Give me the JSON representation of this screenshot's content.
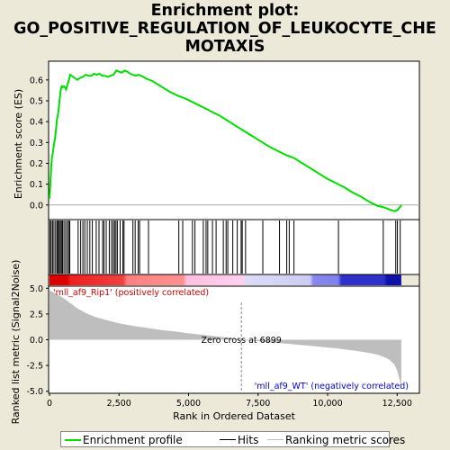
{
  "title_lines": [
    "Enrichment plot:",
    "GO_POSITIVE_REGULATION_OF_LEUKOCYTE_CHE",
    "MOTAXIS"
  ],
  "chart_data": {
    "type": "line",
    "top_panel": {
      "ylabel": "Enrichment score (ES)",
      "ylim": [
        -0.07,
        0.69
      ],
      "yticks": [
        0.0,
        0.1,
        0.2,
        0.3,
        0.4,
        0.5,
        0.6
      ],
      "es_curve": [
        [
          0,
          0.03
        ],
        [
          30,
          0.1
        ],
        [
          60,
          0.18
        ],
        [
          90,
          0.23
        ],
        [
          120,
          0.25
        ],
        [
          160,
          0.29
        ],
        [
          200,
          0.32
        ],
        [
          240,
          0.37
        ],
        [
          270,
          0.41
        ],
        [
          300,
          0.43
        ],
        [
          330,
          0.46
        ],
        [
          360,
          0.5
        ],
        [
          400,
          0.55
        ],
        [
          440,
          0.57
        ],
        [
          480,
          0.565
        ],
        [
          520,
          0.57
        ],
        [
          560,
          0.565
        ],
        [
          600,
          0.555
        ],
        [
          650,
          0.58
        ],
        [
          700,
          0.6
        ],
        [
          740,
          0.625
        ],
        [
          800,
          0.62
        ],
        [
          900,
          0.61
        ],
        [
          1000,
          0.6
        ],
        [
          1100,
          0.61
        ],
        [
          1200,
          0.615
        ],
        [
          1300,
          0.625
        ],
        [
          1400,
          0.62
        ],
        [
          1500,
          0.62
        ],
        [
          1600,
          0.63
        ],
        [
          1700,
          0.625
        ],
        [
          1800,
          0.63
        ],
        [
          1900,
          0.62
        ],
        [
          2000,
          0.62
        ],
        [
          2100,
          0.615
        ],
        [
          2200,
          0.62
        ],
        [
          2300,
          0.625
        ],
        [
          2400,
          0.645
        ],
        [
          2500,
          0.64
        ],
        [
          2600,
          0.635
        ],
        [
          2700,
          0.645
        ],
        [
          2800,
          0.64
        ],
        [
          2900,
          0.63
        ],
        [
          3000,
          0.625
        ],
        [
          3100,
          0.62
        ],
        [
          3200,
          0.625
        ],
        [
          3300,
          0.62
        ],
        [
          3500,
          0.605
        ],
        [
          3700,
          0.595
        ],
        [
          4000,
          0.57
        ],
        [
          4300,
          0.545
        ],
        [
          4600,
          0.525
        ],
        [
          4900,
          0.51
        ],
        [
          5200,
          0.49
        ],
        [
          5500,
          0.47
        ],
        [
          5800,
          0.45
        ],
        [
          6100,
          0.43
        ],
        [
          6400,
          0.405
        ],
        [
          6700,
          0.38
        ],
        [
          7000,
          0.355
        ],
        [
          7300,
          0.33
        ],
        [
          7600,
          0.305
        ],
        [
          7900,
          0.28
        ],
        [
          8200,
          0.26
        ],
        [
          8500,
          0.24
        ],
        [
          8800,
          0.225
        ],
        [
          9100,
          0.2
        ],
        [
          9400,
          0.175
        ],
        [
          9700,
          0.15
        ],
        [
          10000,
          0.125
        ],
        [
          10300,
          0.105
        ],
        [
          10600,
          0.085
        ],
        [
          10900,
          0.06
        ],
        [
          11200,
          0.04
        ],
        [
          11500,
          0.015
        ],
        [
          11800,
          -0.005
        ],
        [
          12000,
          -0.01
        ],
        [
          12200,
          -0.02
        ],
        [
          12400,
          -0.03
        ],
        [
          12500,
          -0.025
        ],
        [
          12600,
          -0.01
        ],
        [
          12650,
          0.0
        ]
      ],
      "hit_ranks": [
        20,
        60,
        110,
        160,
        220,
        270,
        310,
        350,
        390,
        430,
        470,
        520,
        580,
        640,
        690,
        730,
        1030,
        1120,
        1200,
        1270,
        1360,
        1450,
        1540,
        1680,
        1780,
        1910,
        1960,
        2040,
        2150,
        2230,
        2290,
        2340,
        2390,
        2440,
        2540,
        2640,
        2680,
        3000,
        3080,
        3190,
        3240,
        3560,
        4650,
        4790,
        5140,
        5230,
        5530,
        5630,
        5690,
        5860,
        5990,
        6250,
        6350,
        6410,
        6590,
        6750,
        6890,
        6930,
        7050,
        7670,
        8270,
        8530,
        8620,
        8790,
        10390,
        12000,
        12450,
        12510,
        12610
      ]
    },
    "bottom_panel": {
      "ylabel": "Ranked list metric (Signal2Noise)",
      "xlabel": "Rank in Ordered Dataset",
      "ylim": [
        -5.2,
        5.2
      ],
      "yticks": [
        -5.0,
        -2.5,
        0.0,
        2.5,
        5.0
      ],
      "xlim": [
        0,
        13300
      ],
      "xticks": [
        0,
        2500,
        5000,
        7500,
        10000,
        12500
      ],
      "metric_curve": [
        [
          0,
          4.8
        ],
        [
          100,
          4.65
        ],
        [
          250,
          4.45
        ],
        [
          500,
          4.05
        ],
        [
          750,
          3.55
        ],
        [
          1000,
          3.05
        ],
        [
          1300,
          2.6
        ],
        [
          1600,
          2.25
        ],
        [
          2000,
          1.95
        ],
        [
          2500,
          1.6
        ],
        [
          3000,
          1.35
        ],
        [
          3500,
          1.15
        ],
        [
          4000,
          0.95
        ],
        [
          4500,
          0.8
        ],
        [
          5000,
          0.62
        ],
        [
          5500,
          0.48
        ],
        [
          6000,
          0.33
        ],
        [
          6500,
          0.18
        ],
        [
          6899,
          0.0
        ],
        [
          7200,
          -0.08
        ],
        [
          7600,
          -0.17
        ],
        [
          8000,
          -0.27
        ],
        [
          8500,
          -0.38
        ],
        [
          9000,
          -0.5
        ],
        [
          9500,
          -0.62
        ],
        [
          10000,
          -0.75
        ],
        [
          10500,
          -0.9
        ],
        [
          11000,
          -1.07
        ],
        [
          11500,
          -1.28
        ],
        [
          11800,
          -1.45
        ],
        [
          12000,
          -1.65
        ],
        [
          12200,
          -1.9
        ],
        [
          12400,
          -2.4
        ],
        [
          12500,
          -3.0
        ],
        [
          12600,
          -4.0
        ],
        [
          12650,
          -5.0
        ]
      ],
      "zero_cross_rank": 6899,
      "zero_cross_label": "Zero cross at 6899",
      "positive_label": "'mll_af9_Rip1' (positively correlated)",
      "negative_label": "'mll_af9_WT' (negatively correlated)"
    },
    "max_rank": 12650,
    "legend": [
      {
        "label": "Enrichment profile",
        "color": "#00dd00"
      },
      {
        "label": "Hits",
        "color": "#000000"
      },
      {
        "label": "Ranking metric scores",
        "color": "#bebebe"
      }
    ],
    "colors": {
      "es": "#00dd00",
      "metric_fill": "#bebebe",
      "positive_text": "#cc0000",
      "negative_text": "#0000cc",
      "zero_line": "#888888"
    }
  }
}
